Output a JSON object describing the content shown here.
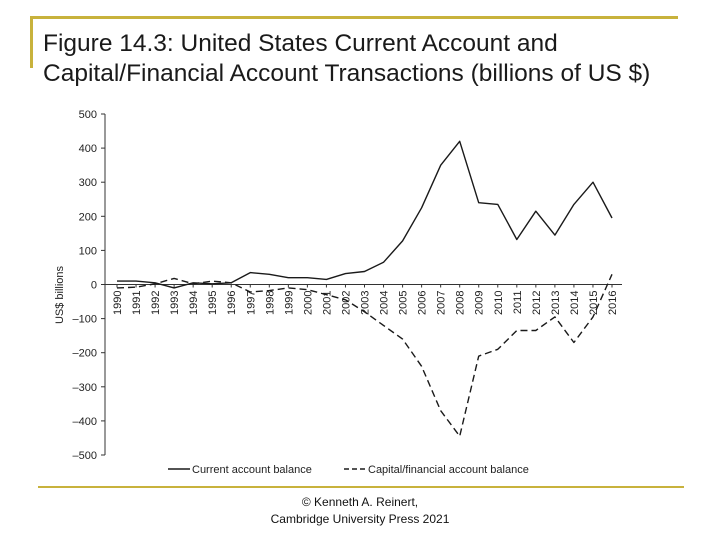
{
  "slide": {
    "title": "Figure 14.3: United States Current Account and Capital/Financial Account Transactions (billions of US $)",
    "footer_line1": "© Kenneth A. Reinert,",
    "footer_line2": "Cambridge University Press 2021",
    "accent_color": "#c8b23c"
  },
  "chart_data": {
    "type": "line",
    "title": "",
    "xlabel": "",
    "ylabel": "US$ billions",
    "ylim": [
      -500,
      500
    ],
    "yticks": [
      500,
      400,
      300,
      200,
      100,
      0,
      -100,
      -200,
      -300,
      -400,
      -500
    ],
    "ytick_labels": [
      "500",
      "400",
      "300",
      "200",
      "100",
      "0",
      "–100",
      "–200",
      "–300",
      "–400",
      "–500"
    ],
    "x": [
      "1990",
      "1991",
      "1992",
      "1993",
      "1994",
      "1995",
      "1996",
      "1997",
      "1998",
      "1999",
      "2000",
      "2001",
      "2002",
      "2003",
      "2004",
      "2005",
      "2006",
      "2007",
      "2008",
      "2009",
      "2010",
      "2011",
      "2012",
      "2013",
      "2014",
      "2015",
      "2016"
    ],
    "grid": false,
    "legend_position": "bottom",
    "series": [
      {
        "name": "Current account balance",
        "style": "solid",
        "values": [
          10,
          10,
          5,
          -10,
          5,
          2,
          5,
          35,
          30,
          20,
          20,
          15,
          32,
          38,
          65,
          128,
          225,
          350,
          420,
          240,
          235,
          132,
          215,
          145,
          235,
          300,
          195
        ]
      },
      {
        "name": "Capital/financial account balance",
        "style": "dashed",
        "values": [
          -10,
          -8,
          2,
          18,
          2,
          10,
          5,
          -22,
          -18,
          -10,
          -15,
          -30,
          -45,
          -80,
          -120,
          -160,
          -240,
          -370,
          -445,
          -210,
          -190,
          -135,
          -135,
          -95,
          -170,
          -95,
          30
        ]
      }
    ]
  }
}
